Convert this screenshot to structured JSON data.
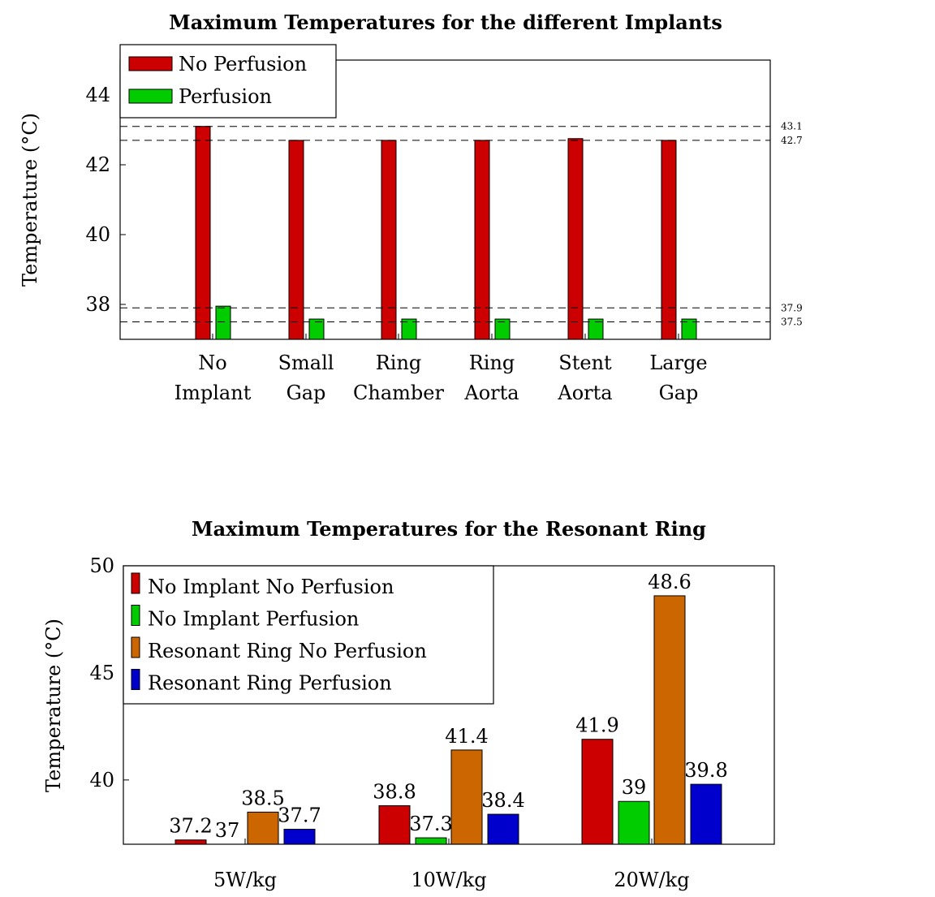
{
  "chart_data": [
    {
      "type": "bar",
      "title": "Maximum Temperatures for the different Implants",
      "ylabel": "Temperature (°C)",
      "xlabel": "",
      "ylim": [
        37,
        45
      ],
      "yticks": [
        "38",
        "40",
        "42",
        "44"
      ],
      "categories": [
        [
          "No",
          "Implant"
        ],
        [
          "Small",
          "Gap"
        ],
        [
          "Ring",
          "Chamber"
        ],
        [
          "Ring",
          "Aorta"
        ],
        [
          "Stent",
          "Aorta"
        ],
        [
          "Large",
          "Gap"
        ]
      ],
      "series": [
        {
          "name": "No Perfusion",
          "color": "#cc0000",
          "values": [
            43.1,
            42.7,
            42.7,
            42.7,
            42.75,
            42.7
          ]
        },
        {
          "name": "Perfusion",
          "color": "#00cc00",
          "values": [
            37.95,
            37.58,
            37.58,
            37.58,
            37.58,
            37.58
          ]
        }
      ],
      "reference_lines": [
        {
          "value": 43.1,
          "label": "43.1"
        },
        {
          "value": 42.7,
          "label": "42.7"
        },
        {
          "value": 37.9,
          "label": "37.9"
        },
        {
          "value": 37.5,
          "label": "37.5"
        }
      ],
      "legend_position": "top-left",
      "grid": false
    },
    {
      "type": "bar",
      "title": "Maximum Temperatures for the Resonant Ring",
      "ylabel": "Temperature (°C)",
      "xlabel": "",
      "ylim": [
        37,
        50
      ],
      "yticks": [
        "40",
        "45",
        "50"
      ],
      "categories": [
        "5W/kg",
        "10W/kg",
        "20W/kg"
      ],
      "series": [
        {
          "name": "No Implant No Perfusion",
          "color": "#cc0000",
          "values": [
            37.2,
            38.8,
            41.9
          ],
          "labels": [
            "37.2",
            "38.8",
            "41.9"
          ]
        },
        {
          "name": "No Implant Perfusion",
          "color": "#00cc00",
          "values": [
            37,
            37.3,
            39
          ],
          "labels": [
            "37",
            "37.3",
            "39"
          ]
        },
        {
          "name": "Resonant Ring No Perfusion",
          "color": "#cc6600",
          "values": [
            38.5,
            41.4,
            48.6
          ],
          "labels": [
            "38.5",
            "41.4",
            "48.6"
          ]
        },
        {
          "name": "Resonant Ring Perfusion",
          "color": "#0000cc",
          "values": [
            37.7,
            38.4,
            39.8
          ],
          "labels": [
            "37.7",
            "38.4",
            "39.8"
          ]
        }
      ],
      "legend_position": "top-left",
      "grid": false
    }
  ]
}
